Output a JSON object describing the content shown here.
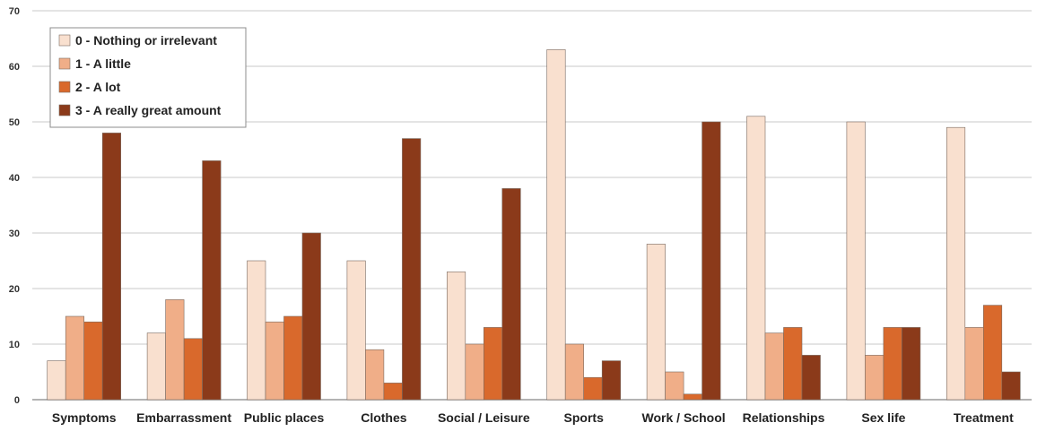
{
  "chart_data": {
    "type": "bar",
    "title": "",
    "xlabel": "",
    "ylabel": "",
    "ylim": [
      0,
      70
    ],
    "yticks": [
      0,
      10,
      20,
      30,
      40,
      50,
      60,
      70
    ],
    "grid": true,
    "legend_position": "top-left",
    "categories": [
      "Symptoms",
      "Embarrassment",
      "Public places",
      "Clothes",
      "Social / Leisure",
      "Sports",
      "Work / School",
      "Relationships",
      "Sex life",
      "Treatment"
    ],
    "series": [
      {
        "name": "0 - Nothing or irrelevant",
        "color": "#f9e0cf",
        "values": [
          7,
          12,
          25,
          25,
          23,
          63,
          28,
          51,
          50,
          49
        ]
      },
      {
        "name": "1 - A little",
        "color": "#f0ae88",
        "values": [
          15,
          18,
          14,
          9,
          10,
          10,
          5,
          12,
          8,
          13
        ]
      },
      {
        "name": "2 - A lot",
        "color": "#d9692c",
        "values": [
          14,
          11,
          15,
          3,
          13,
          4,
          1,
          13,
          13,
          17
        ]
      },
      {
        "name": "3 - A really great amount",
        "color": "#8b3a1a",
        "values": [
          48,
          43,
          30,
          47,
          38,
          7,
          50,
          8,
          13,
          5
        ]
      }
    ]
  }
}
